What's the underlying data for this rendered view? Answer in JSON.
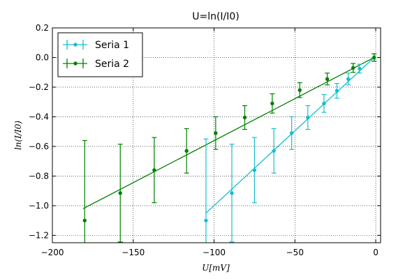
{
  "chart_data": {
    "type": "scatter",
    "title": "U=ln(I/I0)",
    "xlabel": "U[mV]",
    "ylabel": "ln(I/I0)",
    "xlim": [
      -200,
      3
    ],
    "ylim": [
      -1.25,
      0.2
    ],
    "xticks": [
      -200,
      -150,
      -100,
      -50,
      0
    ],
    "yticks": [
      -1.2,
      -1.0,
      -0.8,
      -0.6,
      -0.4,
      -0.2,
      0.0,
      0.2
    ],
    "xtick_labels": [
      "−200",
      "−150",
      "−100",
      "−50",
      "0"
    ],
    "ytick_labels": [
      "−1.2",
      "−1.0",
      "−0.8",
      "−0.6",
      "−0.4",
      "−0.2",
      "0.0",
      "0.2"
    ],
    "grid": true,
    "legend_position": "top-left",
    "series": [
      {
        "name": "Seria 1",
        "color": "#17becf",
        "points": [
          {
            "x": -105,
            "y": -1.1,
            "err": 0.55
          },
          {
            "x": -89,
            "y": -0.915,
            "err": 0.33
          },
          {
            "x": -75,
            "y": -0.76,
            "err": 0.22
          },
          {
            "x": -63,
            "y": -0.63,
            "err": 0.15
          },
          {
            "x": -52,
            "y": -0.51,
            "err": 0.11
          },
          {
            "x": -42,
            "y": -0.405,
            "err": 0.08
          },
          {
            "x": -32,
            "y": -0.31,
            "err": 0.06
          },
          {
            "x": -24,
            "y": -0.225,
            "err": 0.05
          },
          {
            "x": -17,
            "y": -0.145,
            "err": 0.04
          },
          {
            "x": -10,
            "y": -0.075,
            "err": 0.03
          },
          {
            "x": -1,
            "y": 0.0,
            "err": 0.025
          }
        ],
        "fit": {
          "x1": -105,
          "y1": -1.05,
          "x2": -1,
          "y2": 0.0
        }
      },
      {
        "name": "Seria 2",
        "color": "#008000",
        "points": [
          {
            "x": -180,
            "y": -1.1,
            "err": 0.54
          },
          {
            "x": -158,
            "y": -0.915,
            "err": 0.33
          },
          {
            "x": -137,
            "y": -0.76,
            "err": 0.22
          },
          {
            "x": -117,
            "y": -0.63,
            "err": 0.15
          },
          {
            "x": -99,
            "y": -0.51,
            "err": 0.11
          },
          {
            "x": -81,
            "y": -0.405,
            "err": 0.08
          },
          {
            "x": -64,
            "y": -0.31,
            "err": 0.065
          },
          {
            "x": -47,
            "y": -0.22,
            "err": 0.05
          },
          {
            "x": -30,
            "y": -0.145,
            "err": 0.04
          },
          {
            "x": -14,
            "y": -0.07,
            "err": 0.03
          },
          {
            "x": -1,
            "y": 0.0,
            "err": 0.025
          }
        ],
        "fit": {
          "x1": -181,
          "y1": -1.02,
          "x2": -1,
          "y2": 0.0
        }
      }
    ]
  }
}
